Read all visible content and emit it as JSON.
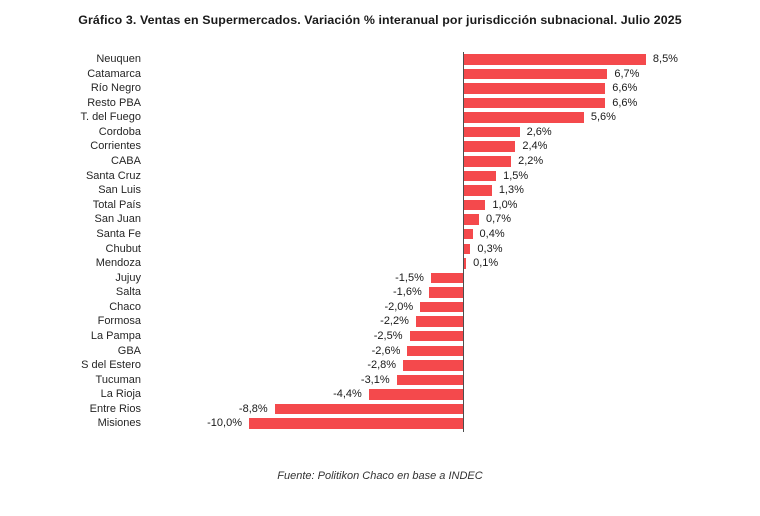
{
  "title": "Gráfico 3. Ventas en Supermercados. Variación % interanual por jurisdicción subnacional. Julio 2025",
  "source": "Fuente: Politikon Chaco en base a INDEC",
  "colors": {
    "bar": "#F4494C",
    "axis": "#4d4d4d",
    "title_text": "#1a1a1a",
    "label_text": "#262626",
    "background": "#ffffff"
  },
  "chart_data": {
    "type": "bar",
    "orientation": "horizontal",
    "title": "Gráfico 3. Ventas en Supermercados. Variación % interanual por jurisdicción subnacional. Julio 2025",
    "xlabel": "",
    "ylabel": "",
    "grid": false,
    "legend": false,
    "xlim": [
      -15,
      14
    ],
    "unit": "%",
    "categories": [
      "Neuquen",
      "Catamarca",
      "Río Negro",
      "Resto PBA",
      "T. del Fuego",
      "Cordoba",
      "Corrientes",
      "CABA",
      "Santa Cruz",
      "San Luis",
      "Total País",
      "San Juan",
      "Santa Fe",
      "Chubut",
      "Mendoza",
      "Jujuy",
      "Salta",
      "Chaco",
      "Formosa",
      "La Pampa",
      "GBA",
      "S del Estero",
      "Tucuman",
      "La Rioja",
      "Entre Rios",
      "Misiones"
    ],
    "values": [
      8.5,
      6.7,
      6.6,
      6.6,
      5.6,
      2.6,
      2.4,
      2.2,
      1.5,
      1.3,
      1.0,
      0.7,
      0.4,
      0.3,
      0.1,
      -1.5,
      -1.6,
      -2.0,
      -2.2,
      -2.5,
      -2.6,
      -2.8,
      -3.1,
      -4.4,
      -8.8,
      -10.0
    ],
    "value_labels": [
      "8,5%",
      "6,7%",
      "6,6%",
      "6,6%",
      "5,6%",
      "2,6%",
      "2,4%",
      "2,2%",
      "1,5%",
      "1,3%",
      "1,0%",
      "0,7%",
      "0,4%",
      "0,3%",
      "0,1%",
      "-1,5%",
      "-1,6%",
      "-2,0%",
      "-2,2%",
      "-2,5%",
      "-2,6%",
      "-2,8%",
      "-3,1%",
      "-4,4%",
      "-8,8%",
      "-10,0%"
    ]
  }
}
